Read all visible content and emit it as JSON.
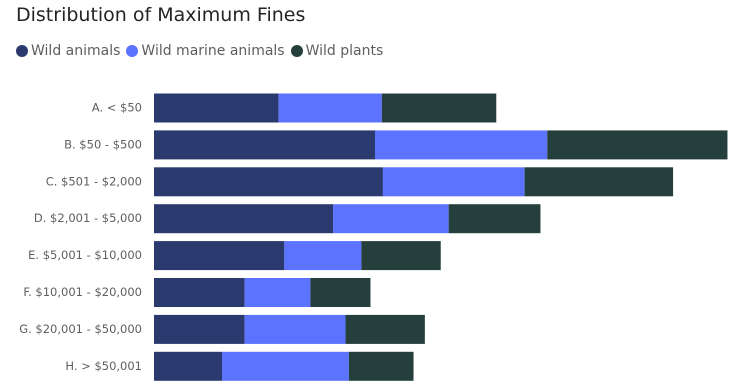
{
  "chart_data": {
    "type": "bar",
    "orientation": "horizontal",
    "stacked": true,
    "title": "Distribution of Maximum Fines",
    "legend_position": "top-left",
    "grid": false,
    "categories": [
      "A. < $50",
      "B. $50 - $500",
      "C. $501 - $2,000",
      "D. $2,001 - $5,000",
      "E. $5,001 - $10,000",
      "F. $10,001 - $20,000",
      "G. $20,001 - $50,000",
      "H. > $50,001"
    ],
    "series": [
      {
        "name": "Wild animals",
        "color": "#2b3a6e",
        "values": [
          11,
          19.5,
          20.2,
          15.8,
          11.5,
          8,
          8,
          6
        ]
      },
      {
        "name": "Wild marine animals",
        "color": "#5b73ff",
        "values": [
          9.1,
          15.2,
          12.5,
          10.2,
          6.8,
          5.8,
          8.9,
          11.2
        ]
      },
      {
        "name": "Wild plants",
        "color": "#25403c",
        "values": [
          10.1,
          15.9,
          13.1,
          8.1,
          7,
          5.3,
          7,
          5.7
        ]
      }
    ],
    "xlim": [
      0,
      51
    ]
  }
}
